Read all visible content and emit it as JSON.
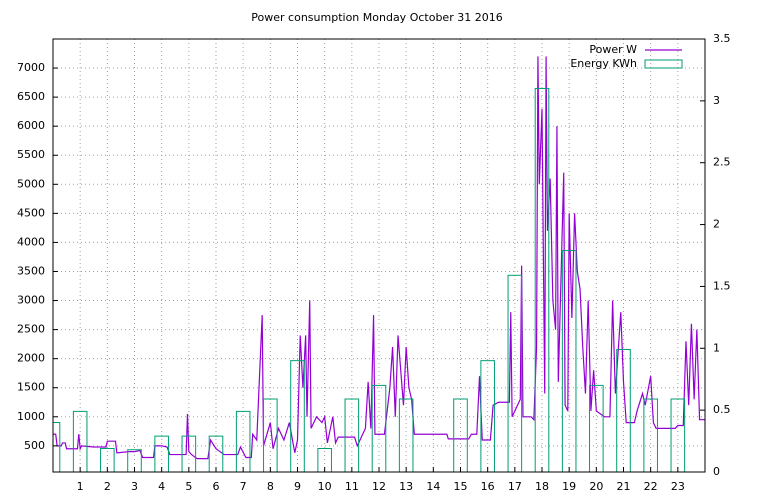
{
  "chart_data": {
    "type": "line",
    "title": "Power consumption Monday October 31 2016",
    "xlim": [
      0,
      24
    ],
    "xticks": [
      1,
      2,
      3,
      4,
      5,
      6,
      7,
      8,
      9,
      10,
      11,
      12,
      13,
      14,
      15,
      16,
      17,
      18,
      19,
      20,
      21,
      22,
      23
    ],
    "ylim": [
      50,
      7500
    ],
    "yticks": [
      500,
      1000,
      1500,
      2000,
      2500,
      3000,
      3500,
      4000,
      4500,
      5000,
      5500,
      6000,
      6500,
      7000
    ],
    "y2lim": [
      0,
      3.5
    ],
    "y2ticks": [
      0,
      0.5,
      1,
      1.5,
      2,
      2.5,
      3,
      3.5
    ],
    "grid": true,
    "legend": "top-right",
    "series": [
      {
        "name": "Power W",
        "color": "#9400d3",
        "type": "line",
        "x": [
          0,
          0.1,
          0.15,
          0.3,
          0.35,
          0.45,
          0.5,
          0.9,
          0.95,
          1.0,
          1.05,
          1.5,
          1.95,
          2.0,
          2.3,
          2.35,
          2.8,
          3.0,
          3.2,
          3.3,
          3.7,
          3.75,
          3.9,
          4.0,
          4.2,
          4.3,
          4.9,
          4.95,
          5.0,
          5.1,
          5.3,
          5.7,
          5.8,
          6.0,
          6.3,
          6.8,
          6.9,
          7.1,
          7.3,
          7.35,
          7.5,
          7.7,
          7.75,
          8.0,
          8.1,
          8.3,
          8.5,
          8.7,
          8.9,
          9.0,
          9.1,
          9.2,
          9.3,
          9.35,
          9.45,
          9.5,
          9.7,
          9.9,
          10.0,
          10.1,
          10.3,
          10.4,
          10.5,
          11.1,
          11.2,
          11.5,
          11.6,
          11.7,
          11.8,
          11.85,
          12.2,
          12.4,
          12.5,
          12.6,
          12.7,
          12.8,
          12.9,
          13.0,
          13.1,
          13.2,
          13.3,
          14.5,
          14.55,
          15.3,
          15.4,
          15.6,
          15.7,
          15.8,
          16.1,
          16.2,
          16.4,
          16.8,
          16.85,
          16.9,
          17.2,
          17.25,
          17.3,
          17.6,
          17.7,
          17.8,
          17.85,
          17.9,
          18.0,
          18.05,
          18.1,
          18.15,
          18.2,
          18.3,
          18.4,
          18.5,
          18.55,
          18.6,
          18.8,
          18.85,
          18.95,
          19.0,
          19.1,
          19.2,
          19.3,
          19.4,
          19.5,
          19.6,
          19.7,
          19.8,
          19.9,
          20.0,
          20.3,
          20.5,
          20.6,
          20.7,
          20.9,
          21.0,
          21.1,
          21.4,
          21.5,
          21.7,
          21.8,
          22.0,
          22.1,
          22.2,
          22.9,
          23.0,
          23.2,
          23.3,
          23.4,
          23.5,
          23.6,
          23.7,
          23.8,
          24.0
        ],
        "values": [
          700,
          700,
          500,
          500,
          550,
          550,
          450,
          450,
          700,
          450,
          500,
          480,
          480,
          580,
          580,
          380,
          400,
          400,
          420,
          300,
          300,
          500,
          500,
          500,
          480,
          350,
          350,
          1050,
          400,
          350,
          280,
          280,
          600,
          450,
          350,
          350,
          480,
          300,
          300,
          700,
          600,
          2750,
          500,
          900,
          450,
          800,
          600,
          900,
          380,
          600,
          2400,
          1500,
          2400,
          1000,
          3000,
          800,
          1000,
          900,
          1000,
          550,
          1000,
          550,
          650,
          650,
          500,
          800,
          1600,
          800,
          2750,
          700,
          700,
          1500,
          2200,
          1000,
          2400,
          1800,
          1200,
          2200,
          1500,
          1300,
          700,
          700,
          620,
          620,
          700,
          700,
          1700,
          600,
          600,
          1200,
          1250,
          1250,
          2800,
          1000,
          1300,
          3600,
          1000,
          1000,
          950,
          2200,
          7200,
          5000,
          6300,
          3800,
          1400,
          7200,
          4200,
          5100,
          3000,
          2500,
          6000,
          1600,
          5200,
          1200,
          1100,
          4500,
          2700,
          4500,
          3500,
          3200,
          2200,
          1400,
          3000,
          1100,
          1800,
          1100,
          1000,
          1000,
          3000,
          1400,
          2800,
          1600,
          900,
          900,
          1100,
          1400,
          1200,
          1700,
          900,
          800,
          800,
          850,
          850,
          2300,
          1200,
          2600,
          1300,
          2500,
          950,
          950
        ]
      },
      {
        "name": "Energy KWh",
        "color": "#009e73",
        "type": "bar",
        "axis": "y2",
        "x": [
          0,
          1,
          2,
          3,
          4,
          5,
          6,
          7,
          8,
          9,
          10,
          11,
          12,
          13,
          14,
          15,
          16,
          17,
          18,
          19,
          20,
          21,
          22,
          23
        ],
        "values": [
          0.4,
          0.49,
          0.19,
          0.18,
          0.29,
          0.29,
          0.29,
          0.49,
          0.59,
          0.9,
          0.19,
          0.59,
          0.7,
          0.59,
          0,
          0.59,
          0.9,
          1.59,
          3.1,
          1.79,
          0.7,
          0.99,
          0.59,
          0.59
        ]
      }
    ]
  }
}
